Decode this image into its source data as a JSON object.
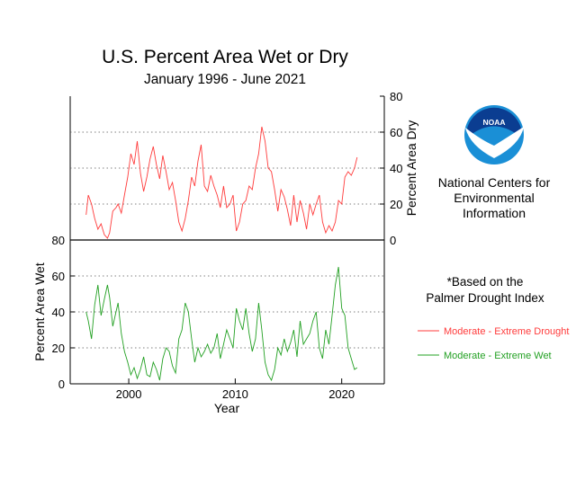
{
  "header": {
    "title": "U.S. Percent Area Wet or Dry",
    "subtitle": "January 1996 - June 2021"
  },
  "logo": {
    "text": "NOAA",
    "org_lines": [
      "National Centers for",
      "Environmental",
      "Information"
    ]
  },
  "note": {
    "lines": [
      "*Based on the",
      "Palmer Drought Index"
    ]
  },
  "colors": {
    "dry": "#ff3b3b",
    "wet": "#22a022",
    "logo_blue": "#1a8fd6",
    "logo_navy": "#0b3d91"
  },
  "chart_data": [
    {
      "type": "line",
      "panel": "top",
      "ylabel": "Percent Area Dry",
      "ylim": [
        0,
        80
      ],
      "xlim": [
        1994.5,
        2024
      ],
      "yticks": [
        0,
        20,
        40,
        60,
        80
      ],
      "grid": "dotted horizontal",
      "series": [
        {
          "name": "Moderate - Extreme Drought",
          "x": [
            1996.0,
            1996.2,
            1996.5,
            1996.8,
            1997.1,
            1997.4,
            1997.7,
            1998.0,
            1998.2,
            1998.5,
            1998.8,
            1999.0,
            1999.3,
            1999.6,
            1999.9,
            2000.2,
            2000.5,
            2000.8,
            2001.1,
            2001.4,
            2001.7,
            2002.0,
            2002.3,
            2002.6,
            2002.9,
            2003.2,
            2003.5,
            2003.8,
            2004.1,
            2004.4,
            2004.7,
            2005.0,
            2005.3,
            2005.6,
            2005.9,
            2006.2,
            2006.5,
            2006.8,
            2007.1,
            2007.4,
            2007.7,
            2008.0,
            2008.3,
            2008.6,
            2008.9,
            2009.2,
            2009.5,
            2009.8,
            2010.1,
            2010.4,
            2010.7,
            2011.0,
            2011.3,
            2011.6,
            2011.9,
            2012.2,
            2012.5,
            2012.8,
            2013.1,
            2013.4,
            2013.7,
            2014.0,
            2014.3,
            2014.6,
            2014.9,
            2015.2,
            2015.5,
            2015.8,
            2016.1,
            2016.4,
            2016.7,
            2017.0,
            2017.3,
            2017.6,
            2017.9,
            2018.2,
            2018.5,
            2018.8,
            2019.1,
            2019.4,
            2019.7,
            2020.0,
            2020.3,
            2020.6,
            2020.9,
            2021.2,
            2021.45
          ],
          "values": [
            14,
            25,
            20,
            12,
            6,
            9,
            3,
            1,
            4,
            16,
            18,
            20,
            15,
            25,
            35,
            48,
            42,
            55,
            37,
            27,
            35,
            45,
            52,
            42,
            34,
            47,
            38,
            28,
            32,
            22,
            10,
            5,
            12,
            22,
            35,
            30,
            44,
            53,
            30,
            27,
            36,
            30,
            25,
            18,
            30,
            18,
            20,
            25,
            5,
            10,
            20,
            22,
            30,
            28,
            40,
            48,
            63,
            55,
            40,
            38,
            28,
            16,
            28,
            24,
            17,
            8,
            25,
            10,
            22,
            15,
            6,
            20,
            14,
            20,
            25,
            10,
            4,
            8,
            5,
            10,
            22,
            20,
            35,
            38,
            36,
            40,
            46
          ]
        }
      ]
    },
    {
      "type": "line",
      "panel": "bottom",
      "xlabel": "Year",
      "ylabel": "Percent Area Wet",
      "ylim": [
        0,
        80
      ],
      "xlim": [
        1994.5,
        2024
      ],
      "yticks": [
        0,
        20,
        40,
        60,
        80
      ],
      "xticks": [
        2000,
        2010,
        2020
      ],
      "grid": "dotted horizontal",
      "series": [
        {
          "name": "Moderate - Extreme Wet",
          "x": [
            1996.0,
            1996.2,
            1996.5,
            1996.8,
            1997.1,
            1997.4,
            1997.7,
            1998.0,
            1998.2,
            1998.5,
            1998.8,
            1999.0,
            1999.3,
            1999.6,
            1999.9,
            2000.2,
            2000.5,
            2000.8,
            2001.1,
            2001.4,
            2001.7,
            2002.0,
            2002.3,
            2002.6,
            2002.9,
            2003.2,
            2003.5,
            2003.8,
            2004.1,
            2004.4,
            2004.7,
            2005.0,
            2005.3,
            2005.6,
            2005.9,
            2006.2,
            2006.5,
            2006.8,
            2007.1,
            2007.4,
            2007.7,
            2008.0,
            2008.3,
            2008.6,
            2008.9,
            2009.2,
            2009.5,
            2009.8,
            2010.1,
            2010.4,
            2010.7,
            2011.0,
            2011.3,
            2011.6,
            2011.9,
            2012.2,
            2012.5,
            2012.8,
            2013.1,
            2013.4,
            2013.7,
            2014.0,
            2014.3,
            2014.6,
            2014.9,
            2015.2,
            2015.5,
            2015.8,
            2016.1,
            2016.4,
            2016.7,
            2017.0,
            2017.3,
            2017.6,
            2017.9,
            2018.2,
            2018.5,
            2018.8,
            2019.1,
            2019.4,
            2019.7,
            2020.0,
            2020.3,
            2020.6,
            2020.9,
            2021.2,
            2021.45
          ],
          "values": [
            40,
            35,
            25,
            44,
            55,
            38,
            47,
            55,
            48,
            32,
            40,
            45,
            28,
            18,
            12,
            5,
            9,
            3,
            8,
            15,
            5,
            4,
            12,
            8,
            2,
            14,
            20,
            18,
            10,
            6,
            25,
            30,
            45,
            40,
            25,
            12,
            20,
            15,
            18,
            22,
            17,
            20,
            28,
            14,
            22,
            30,
            25,
            20,
            42,
            35,
            30,
            42,
            28,
            18,
            25,
            45,
            30,
            12,
            5,
            2,
            8,
            20,
            16,
            25,
            18,
            23,
            30,
            15,
            35,
            22,
            25,
            28,
            35,
            40,
            20,
            14,
            30,
            22,
            38,
            55,
            65,
            42,
            38,
            20,
            14,
            8,
            9
          ]
        }
      ]
    }
  ]
}
